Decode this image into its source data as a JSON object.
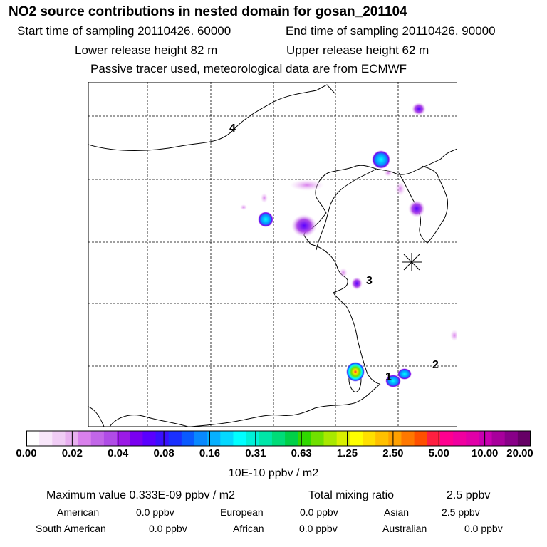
{
  "title": "NO2 source contributions in nested domain for gosan_201104",
  "header": {
    "start": "Start time of sampling 20110426. 60000",
    "end": "End time of sampling 20110426. 90000",
    "lower": "Lower release height   82 m",
    "upper": "Upper release height   62 m",
    "note": "Passive tracer used, meteorological data are from ECMWF"
  },
  "map_labels": [
    "4",
    "3",
    "2",
    "1"
  ],
  "colorbar": {
    "ticks": [
      "0.00",
      "0.02",
      "0.04",
      "0.08",
      "0.16",
      "0.31",
      "0.63",
      "1.25",
      "2.50",
      "5.00",
      "10.00",
      "20.00"
    ],
    "colors": [
      "#ffffff",
      "#f8e6fa",
      "#f0ccf5",
      "#e8b0f0",
      "#d980ec",
      "#c266e8",
      "#b04ce6",
      "#9b1ae6",
      "#7a00f0",
      "#5a00ff",
      "#3a10ff",
      "#1a30ff",
      "#0a5aff",
      "#0888ff",
      "#06b0ff",
      "#04d8ff",
      "#00ffff",
      "#00f0d8",
      "#00e6a8",
      "#00dc78",
      "#00d048",
      "#30d800",
      "#70e000",
      "#a8e800",
      "#d8f000",
      "#ffff00",
      "#ffe000",
      "#ffc000",
      "#ffa000",
      "#ff7800",
      "#ff5000",
      "#ff2040",
      "#ff0090",
      "#f000a0",
      "#e000a8",
      "#c800b0",
      "#a8009c",
      "#880088",
      "#660066"
    ],
    "unit": "10E-10 ppbv / m2"
  },
  "summary": {
    "max_label": "Maximum value  0.333E-09 ppbv / m2",
    "total_label": "Total mixing ratio",
    "total_value": "2.5 ppbv",
    "regions": [
      {
        "name": "American",
        "value": "0.0 ppbv"
      },
      {
        "name": "European",
        "value": "0.0 ppbv"
      },
      {
        "name": "Asian",
        "value": "2.5 ppbv"
      },
      {
        "name": "South American",
        "value": "0.0 ppbv"
      },
      {
        "name": "African",
        "value": "0.0 ppbv"
      },
      {
        "name": "Australian",
        "value": "0.0 ppbv"
      }
    ]
  }
}
